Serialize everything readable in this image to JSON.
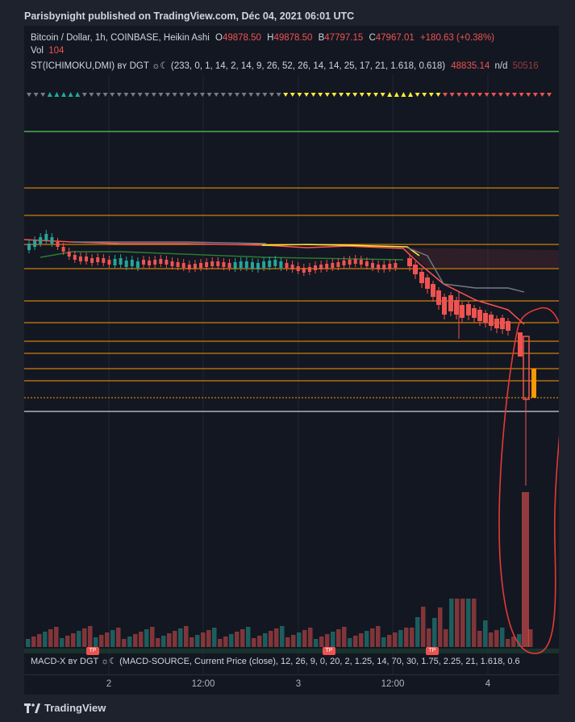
{
  "header": {
    "published": "Parisbynight published on TradingView.com, Déc 04, 2021 06:01 UTC"
  },
  "legend": {
    "symbol": "Bitcoin / Dollar, 1h, COINBASE, Heikin Ashi",
    "o_label": "O",
    "o_value": "49878.50",
    "h_label": "H",
    "h_value": "49878.50",
    "b_label": "B",
    "b_value": "47797.15",
    "c_label": "C",
    "c_value": "47967.01",
    "change": "+180.63 (+0.38%)",
    "vol_label": "Vol",
    "vol_value": "104",
    "indicator": "ST(ICHIMOKU,DMI) ʙʏ DGT ☼☾ (233, 0, 1, 14, 2, 14, 9, 26, 52, 26, 14, 14, 25, 17, 21, 1.618, 0.618)",
    "ind_value": "48835.14",
    "ind_nd": "n/d",
    "ind_value2": "50516"
  },
  "macd": {
    "label": "MACD-X ʙʏ DGT ☼☾ (MACD-SOURCE, Current Price (close), 12, 26, 9, 0, 20, 2, 1.25, 14, 70, 30, 1.75, 2.25, 21, 1.618, 0.6"
  },
  "tp_markers": [
    "TP",
    "TP",
    "TP"
  ],
  "xaxis": {
    "ticks": [
      "2",
      "12:00",
      "3",
      "12:00",
      "4"
    ]
  },
  "footer": {
    "brand": "TradingView"
  },
  "colors": {
    "up": "#26a69a",
    "down": "#ef5350",
    "orange": "#ff9800",
    "annotation": "#e53935",
    "green_line": "#4caf50"
  }
}
